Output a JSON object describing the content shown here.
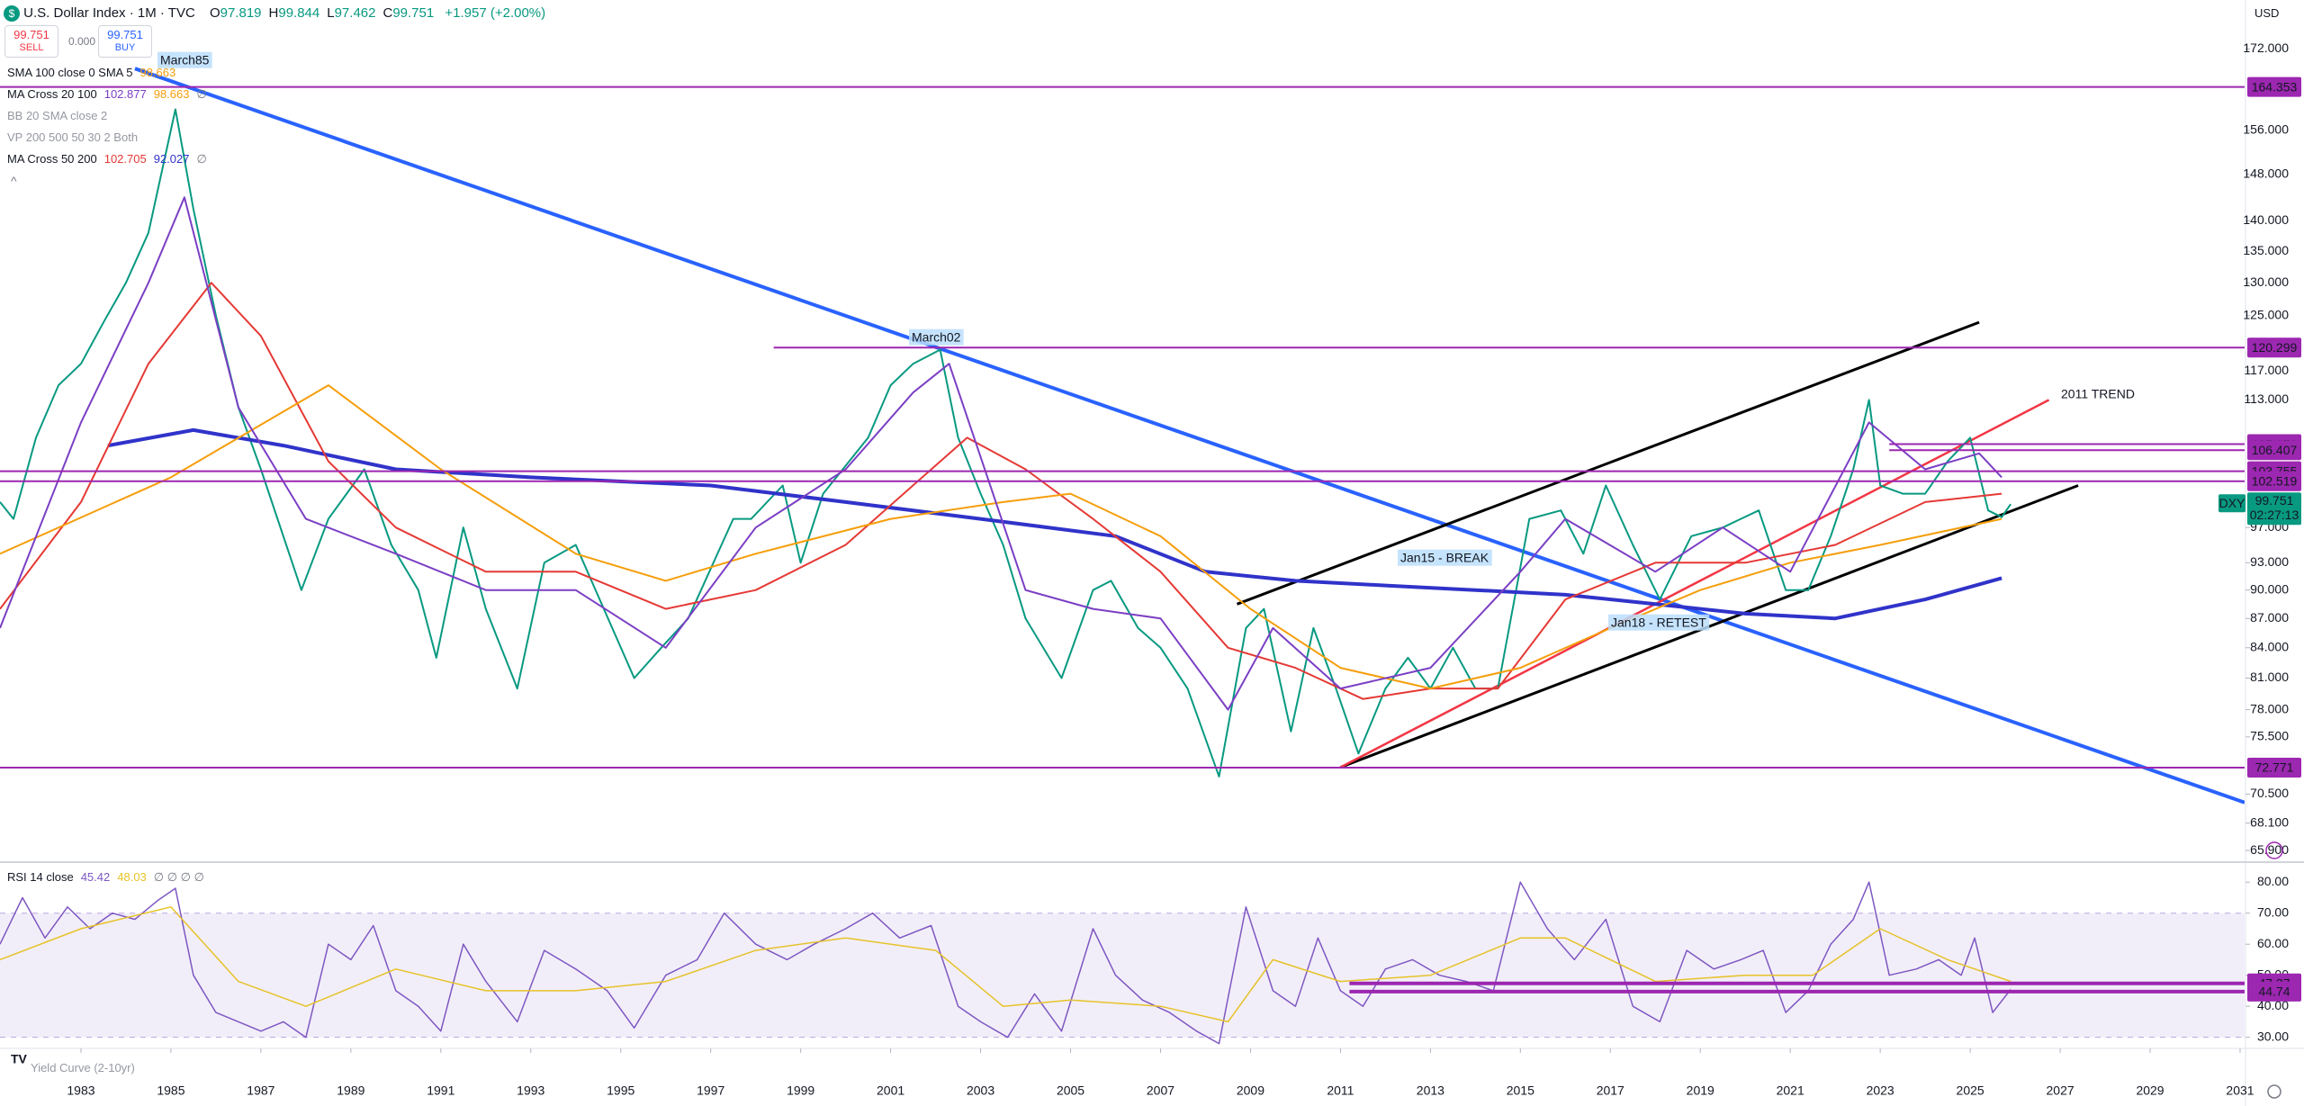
{
  "header": {
    "symbol": "U.S. Dollar Index · 1M · TVC",
    "ohlc": [
      [
        "O",
        "97.819"
      ],
      [
        "H",
        "99.844"
      ],
      [
        "L",
        "97.462"
      ],
      [
        "C",
        "99.751"
      ]
    ],
    "change": "+1.957 (+2.00%)",
    "sell": {
      "price": "99.751",
      "label": "SELL"
    },
    "spread": "0.000",
    "buy": {
      "price": "99.751",
      "label": "BUY"
    },
    "currency": "USD"
  },
  "indicators": [
    {
      "name": "SMA 100 close 0 SMA 5",
      "values": [
        {
          "text": "98.663",
          "color": "#f59e0b"
        }
      ]
    },
    {
      "name": "MA Cross 20 100",
      "values": [
        {
          "text": "102.877",
          "color": "#7b3fc4"
        },
        {
          "text": "98.663",
          "color": "#f59e0b"
        },
        {
          "text": "∅",
          "color": "#787b86"
        }
      ]
    },
    {
      "name": "BB 20 SMA close 2",
      "values": []
    },
    {
      "name": "VP 200 500 50 30 2 Both",
      "values": []
    },
    {
      "name": "MA Cross 50 200",
      "values": [
        {
          "text": "102.705",
          "color": "#e53935"
        },
        {
          "text": "92.027",
          "color": "#3033c9"
        },
        {
          "text": "∅",
          "color": "#787b86"
        }
      ]
    }
  ],
  "rsi_legend": {
    "name": "RSI 14 close",
    "values": [
      {
        "text": "45.42",
        "color": "#7e57c2"
      },
      {
        "text": "48.03",
        "color": "#e6c229"
      },
      {
        "text": "∅ ∅ ∅ ∅",
        "color": "#787b86"
      }
    ]
  },
  "footer_indicator": "Yield Curve (2-10yr)",
  "chart_data": [
    {
      "type": "line",
      "log_scale": true,
      "xlim": [
        1981.2,
        2031.1
      ],
      "ylim": [
        65.2,
        176
      ],
      "xticks": [
        1983,
        1985,
        1987,
        1989,
        1991,
        1993,
        1995,
        1997,
        1999,
        2001,
        2003,
        2005,
        2007,
        2009,
        2011,
        2013,
        2015,
        2017,
        2019,
        2021,
        2023,
        2025,
        2027,
        2029,
        2031
      ],
      "yticks": [
        {
          "value": 172,
          "label": "172.000"
        },
        {
          "value": 156,
          "label": "156.000"
        },
        {
          "value": 148,
          "label": "148.000"
        },
        {
          "value": 140,
          "label": "140.000"
        },
        {
          "value": 135,
          "label": "135.000"
        },
        {
          "value": 130,
          "label": "130.000"
        },
        {
          "value": 125,
          "label": "125.000"
        },
        {
          "value": 117,
          "label": "117.000"
        },
        {
          "value": 113,
          "label": "113.000"
        },
        {
          "value": 97,
          "label": "97.000"
        },
        {
          "value": 93,
          "label": "93.000"
        },
        {
          "value": 90,
          "label": "90.000"
        },
        {
          "value": 87,
          "label": "87.000"
        },
        {
          "value": 84,
          "label": "84.000"
        },
        {
          "value": 81,
          "label": "81.000"
        },
        {
          "value": 78,
          "label": "78.000"
        },
        {
          "value": 75.5,
          "label": "75.500"
        },
        {
          "value": 70.5,
          "label": "70.500"
        },
        {
          "value": 68.1,
          "label": "68.100"
        },
        {
          "value": 65.9,
          "label": "65.900"
        }
      ],
      "series": [
        {
          "name": "DXY",
          "color": "#089981",
          "width": 2,
          "x": [
            1981.2,
            1981.5,
            1982.0,
            1982.5,
            1983.0,
            1983.5,
            1984.0,
            1984.5,
            1985.1,
            1985.5,
            1986.0,
            1986.5,
            1987.0,
            1987.9,
            1988.5,
            1989.3,
            1989.9,
            1990.5,
            1990.9,
            1991.5,
            1992.0,
            1992.7,
            1993.3,
            1994.0,
            1995.3,
            1995.9,
            1996.5,
            1997.5,
            1997.9,
            1998.6,
            1999.0,
            1999.5,
            2000.5,
            2001.0,
            2001.5,
            2002.1,
            2002.5,
            2003.0,
            2003.5,
            2004.0,
            2004.8,
            2005.5,
            2005.9,
            2006.5,
            2007.0,
            2007.6,
            2008.3,
            2008.9,
            2009.3,
            2009.9,
            2010.4,
            2010.9,
            2011.4,
            2012.0,
            2012.5,
            2013.0,
            2013.5,
            2014.0,
            2014.5,
            2015.2,
            2015.9,
            2016.4,
            2016.9,
            2017.5,
            2018.1,
            2018.8,
            2019.5,
            2019.9,
            2020.3,
            2020.9,
            2021.4,
            2021.9,
            2022.4,
            2022.75,
            2023.0,
            2023.5,
            2024.0,
            2024.5,
            2025.0,
            2025.4,
            2025.7,
            2025.9
          ],
          "values": [
            100,
            98,
            108,
            115,
            118,
            124,
            130,
            138,
            160,
            142,
            125,
            112,
            104,
            90,
            98,
            104,
            95,
            90,
            83,
            97,
            88,
            80,
            93,
            95,
            81,
            84,
            87,
            98,
            98,
            102,
            93,
            101,
            108,
            115,
            118,
            120,
            108,
            101,
            95,
            87,
            81,
            90,
            91,
            86,
            84,
            80,
            72,
            86,
            88,
            76,
            86,
            80,
            74,
            80,
            83,
            80,
            84,
            80,
            80,
            98,
            99,
            94,
            102,
            95,
            89,
            96,
            97,
            98,
            99,
            90,
            90,
            96,
            104,
            113,
            102,
            101,
            101,
            105,
            108,
            99,
            98.2,
            99.751
          ]
        },
        {
          "color": "#3033c9",
          "width": 4,
          "x": [
            1983.6,
            1985.5,
            1987.5,
            1990,
            1993,
            1997,
            2000,
            2003,
            2006,
            2008,
            2010,
            2012,
            2014,
            2016,
            2018,
            2020,
            2022,
            2024,
            2025.7
          ],
          "values": [
            107,
            109,
            107,
            104,
            103,
            102,
            100,
            98,
            96,
            92,
            91,
            90.5,
            90,
            89.5,
            88.5,
            87.5,
            87,
            89,
            91.3
          ]
        },
        {
          "color": "#e53935",
          "width": 2,
          "x": [
            1981.2,
            1983,
            1984.5,
            1985.9,
            1987,
            1988.5,
            1990,
            1992,
            1994,
            1996,
            1998,
            2000,
            2002.7,
            2004,
            2005.5,
            2007,
            2008.5,
            2010,
            2011.5,
            2013,
            2014.5,
            2016,
            2018,
            2020,
            2022,
            2024,
            2025.7
          ],
          "values": [
            88,
            100,
            118,
            130,
            122,
            105,
            97,
            92,
            92,
            88,
            90,
            95,
            108,
            104,
            98,
            92,
            84,
            82,
            79,
            80,
            80,
            89,
            93,
            93,
            95,
            100,
            101
          ]
        },
        {
          "color": "#f59e0b",
          "width": 2,
          "x": [
            1981.2,
            1985,
            1988.5,
            1991,
            1994,
            1996,
            1998,
            2001,
            2003.5,
            2005,
            2007,
            2009,
            2011,
            2013,
            2015,
            2017,
            2019,
            2021,
            2023,
            2025.7
          ],
          "values": [
            94,
            103,
            115,
            104,
            94,
            91,
            94,
            98,
            100,
            101,
            96,
            88,
            82,
            80,
            82,
            86,
            90,
            93,
            95,
            98
          ]
        },
        {
          "color": "#7b3fc4",
          "width": 2,
          "x": [
            1981.2,
            1983,
            1984.5,
            1985.3,
            1986.5,
            1988,
            1990,
            1992,
            1994,
            1996,
            1998,
            2000,
            2001.5,
            2002.3,
            2004,
            2005.5,
            2007,
            2008.5,
            2009.5,
            2011,
            2013,
            2015,
            2016,
            2018,
            2019.5,
            2021,
            2022.75,
            2024,
            2025.2,
            2025.7
          ],
          "values": [
            86,
            110,
            130,
            144,
            112,
            98,
            94,
            90,
            90,
            84,
            97,
            104,
            114,
            118,
            90,
            88,
            87,
            78,
            86,
            80,
            82,
            92,
            98,
            92,
            97,
            92,
            110,
            104,
            106,
            103
          ]
        }
      ],
      "levels": [
        {
          "value": 164.353,
          "from": 1981.2
        },
        {
          "value": 120.299,
          "from": 1998.4
        },
        {
          "value": 107.173,
          "from": 2023.2
        },
        {
          "value": 106.407,
          "from": 2023.2
        },
        {
          "value": 103.755,
          "from": 1981.2
        },
        {
          "value": 102.519,
          "from": 1981.2
        },
        {
          "value": 72.771,
          "from": 1981.2
        }
      ],
      "level_color": "#9c27b0",
      "trendlines": [
        {
          "color": "#2962ff",
          "width": 4,
          "points": [
            [
              1984.2,
              168
            ],
            [
              2031.1,
              69.8
            ]
          ]
        },
        {
          "color": "#000000",
          "width": 3,
          "points": [
            [
              2008.7,
              88.5
            ],
            [
              2025.2,
              124
            ]
          ]
        },
        {
          "color": "#000000",
          "width": 3,
          "points": [
            [
              2011.0,
              72.8
            ],
            [
              2027.4,
              102
            ]
          ]
        },
        {
          "color": "#f23645",
          "width": 2.5,
          "points": [
            [
              2011.0,
              72.8
            ],
            [
              2026.75,
              113
            ]
          ]
        }
      ],
      "annotations": [
        {
          "text": "March85",
          "color": "#2962ff",
          "background": "#bbdefb"
        },
        {
          "text": "March02",
          "color": "#2962ff",
          "background": "#bbdefb"
        },
        {
          "text": "Jan15 - BREAK",
          "color": "#2962ff",
          "background": "#bbdefb"
        },
        {
          "text": "Jan18 - RETEST",
          "color": "#2962ff",
          "background": "#bbdefb"
        },
        {
          "text": "2011 TREND",
          "color": "#f23645"
        }
      ],
      "countdown": "02:27:13"
    },
    {
      "type": "line",
      "ylim": [
        27,
        85
      ],
      "yticks": [
        {
          "value": 80,
          "label": "80.00"
        },
        {
          "value": 70,
          "label": "70.00"
        },
        {
          "value": 60,
          "label": "60.00"
        },
        {
          "value": 50,
          "label": "50.00"
        },
        {
          "value": 40,
          "label": "40.00"
        },
        {
          "value": 30,
          "label": "30.00"
        }
      ],
      "band": [
        30,
        70
      ],
      "band_color": "#7e57c2",
      "series": [
        {
          "color": "#7e57c2",
          "width": 1.5,
          "x": [
            1981.2,
            1981.7,
            1982.2,
            1982.7,
            1983.2,
            1983.7,
            1984.2,
            1984.7,
            1985.1,
            1985.5,
            1986.0,
            1986.5,
            1987.0,
            1987.5,
            1988.0,
            1988.5,
            1989.0,
            1989.5,
            1990.0,
            1990.5,
            1991.0,
            1991.5,
            1992.0,
            1992.7,
            1993.3,
            1994.0,
            1994.7,
            1995.3,
            1996.0,
            1996.7,
            1997.3,
            1998.0,
            1998.7,
            1999.3,
            2000.0,
            2000.6,
            2001.2,
            2001.9,
            2002.5,
            2003.0,
            2003.6,
            2004.2,
            2004.8,
            2005.5,
            2006.0,
            2006.6,
            2007.2,
            2007.8,
            2008.3,
            2008.9,
            2009.5,
            2010.0,
            2010.5,
            2011.0,
            2011.5,
            2012.0,
            2012.6,
            2013.2,
            2013.8,
            2014.4,
            2015.0,
            2015.6,
            2016.2,
            2016.9,
            2017.5,
            2018.1,
            2018.7,
            2019.3,
            2019.9,
            2020.4,
            2020.9,
            2021.4,
            2021.9,
            2022.4,
            2022.75,
            2023.2,
            2023.8,
            2024.3,
            2024.8,
            2025.1,
            2025.5,
            2025.9
          ],
          "values": [
            60,
            75,
            62,
            72,
            65,
            70,
            68,
            74,
            78,
            50,
            38,
            35,
            32,
            35,
            30,
            60,
            55,
            66,
            45,
            40,
            32,
            60,
            48,
            35,
            58,
            52,
            45,
            33,
            50,
            55,
            70,
            60,
            55,
            60,
            65,
            70,
            62,
            66,
            40,
            35,
            30,
            44,
            32,
            65,
            50,
            42,
            38,
            32,
            28,
            72,
            45,
            40,
            62,
            45,
            40,
            52,
            55,
            50,
            48,
            45,
            80,
            65,
            55,
            68,
            40,
            35,
            58,
            52,
            55,
            58,
            38,
            45,
            60,
            68,
            80,
            50,
            52,
            55,
            50,
            62,
            38,
            45.42
          ]
        },
        {
          "color": "#e6c229",
          "width": 1.5,
          "x": [
            1981.2,
            1983,
            1985,
            1986.5,
            1988,
            1990,
            1992,
            1994,
            1996,
            1998,
            2000,
            2002,
            2003.5,
            2005,
            2007,
            2008.5,
            2009.5,
            2011,
            2013,
            2015,
            2016,
            2018,
            2020,
            2021.5,
            2023,
            2024.5,
            2025.9
          ],
          "values": [
            55,
            65,
            72,
            48,
            40,
            52,
            45,
            45,
            48,
            58,
            62,
            58,
            40,
            42,
            40,
            35,
            55,
            48,
            50,
            62,
            62,
            48,
            50,
            50,
            65,
            55,
            48.03
          ]
        }
      ],
      "levels": [
        {
          "value": 47.37,
          "from": 2011.2
        },
        {
          "value": 44.74,
          "from": 2011.2
        }
      ],
      "level_color": "#9c27b0"
    }
  ]
}
